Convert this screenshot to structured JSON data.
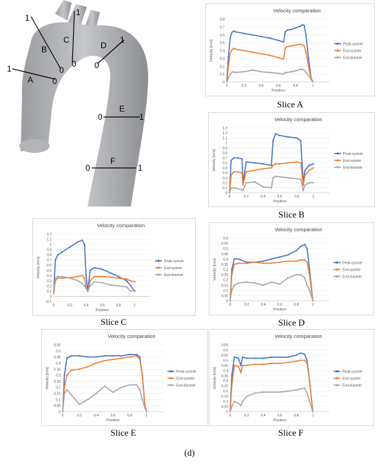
{
  "figure_label": "(d)",
  "series_colors": {
    "Peak-systole": "#4472c4",
    "End-systole": "#ed7d31",
    "End-diastole": "#a5a5a5"
  },
  "aorta": {
    "slice_letters": [
      "A",
      "B",
      "C",
      "D",
      "E",
      "F"
    ],
    "endpoint_labels": [
      "0",
      "1"
    ]
  },
  "chart_data": [
    {
      "type": "line",
      "caption": "Slice A",
      "title": "Velocity comparation",
      "xlabel": "Position",
      "ylabel": "Velocity [m/s]",
      "xlim": [
        0,
        1.2
      ],
      "ylim": [
        0,
        0.8
      ],
      "xticks": [
        0,
        0.2,
        0.4,
        0.6,
        0.8,
        1
      ],
      "yticks": [
        0,
        0.1,
        0.2,
        0.3,
        0.4,
        0.5,
        0.6,
        0.7,
        0.8
      ],
      "x": [
        0,
        0.02,
        0.04,
        0.06,
        0.08,
        0.1,
        0.2,
        0.3,
        0.4,
        0.5,
        0.6,
        0.66,
        0.68,
        0.7,
        0.75,
        0.8,
        0.85,
        0.88,
        0.9,
        0.92,
        0.95,
        0.98,
        1.0
      ],
      "series": [
        {
          "name": "Peak-systole",
          "values": [
            0.0,
            0.32,
            0.56,
            0.63,
            0.65,
            0.64,
            0.62,
            0.6,
            0.58,
            0.56,
            0.53,
            0.51,
            0.64,
            0.66,
            0.67,
            0.69,
            0.71,
            0.73,
            0.72,
            0.6,
            0.3,
            0.05,
            0.0
          ]
        },
        {
          "name": "End-systole",
          "values": [
            0.0,
            0.2,
            0.36,
            0.41,
            0.43,
            0.42,
            0.4,
            0.38,
            0.36,
            0.34,
            0.31,
            0.29,
            0.43,
            0.45,
            0.46,
            0.47,
            0.48,
            0.47,
            0.46,
            0.38,
            0.2,
            0.04,
            0.0
          ]
        },
        {
          "name": "End-diastole",
          "values": [
            0.0,
            0.05,
            0.1,
            0.12,
            0.13,
            0.12,
            0.13,
            0.15,
            0.13,
            0.12,
            0.11,
            0.1,
            0.12,
            0.12,
            0.13,
            0.14,
            0.16,
            0.16,
            0.15,
            0.12,
            0.08,
            0.03,
            0.0
          ]
        }
      ]
    },
    {
      "type": "line",
      "caption": "Slice B",
      "title": "Velocity comparation",
      "xlabel": "Position",
      "ylabel": "Velocity [m/s]",
      "xlim": [
        0,
        1.2
      ],
      "ylim": [
        0,
        1.3
      ],
      "xticks": [
        0,
        0.2,
        0.4,
        0.6,
        0.8,
        1
      ],
      "yticks": [
        0,
        0.1,
        0.2,
        0.3,
        0.4,
        0.5,
        0.6,
        0.7,
        0.8,
        0.9,
        1,
        1.1,
        1.2,
        1.3
      ],
      "x": [
        0,
        0.02,
        0.05,
        0.1,
        0.15,
        0.16,
        0.2,
        0.3,
        0.4,
        0.5,
        0.52,
        0.55,
        0.6,
        0.7,
        0.8,
        0.85,
        0.88,
        0.9,
        0.95,
        1.0
      ],
      "series": [
        {
          "name": "Peak-systole",
          "values": [
            0.0,
            0.65,
            0.7,
            0.7,
            0.68,
            0.2,
            0.62,
            0.6,
            0.58,
            0.55,
            1.05,
            1.18,
            1.15,
            1.12,
            1.1,
            1.05,
            0.2,
            0.45,
            0.55,
            0.58
          ]
        },
        {
          "name": "End-systole",
          "values": [
            0.0,
            0.35,
            0.42,
            0.42,
            0.4,
            0.15,
            0.42,
            0.45,
            0.48,
            0.5,
            0.55,
            0.58,
            0.58,
            0.6,
            0.62,
            0.6,
            0.15,
            0.35,
            0.45,
            0.5
          ]
        },
        {
          "name": "End-diastole",
          "values": [
            0.0,
            0.1,
            0.1,
            0.08,
            0.06,
            0.05,
            0.2,
            0.22,
            0.12,
            0.1,
            0.3,
            0.33,
            0.32,
            0.3,
            0.28,
            0.27,
            0.05,
            0.15,
            0.2,
            0.2
          ]
        }
      ]
    },
    {
      "type": "line",
      "caption": "Slice C",
      "title": "Velocity comparation",
      "xlabel": "Position",
      "ylabel": "Velocity [m/s]",
      "xlim": [
        0,
        1.2
      ],
      "ylim": [
        -0.1,
        1.2
      ],
      "xticks": [
        0,
        0.2,
        0.4,
        0.6,
        0.8,
        1
      ],
      "yticks": [
        -0.1,
        0,
        0.1,
        0.2,
        0.3,
        0.4,
        0.5,
        0.6,
        0.7,
        0.8,
        0.9,
        1,
        1.1,
        1.2
      ],
      "x": [
        0,
        0.02,
        0.05,
        0.1,
        0.2,
        0.3,
        0.35,
        0.38,
        0.4,
        0.42,
        0.45,
        0.5,
        0.6,
        0.7,
        0.8,
        0.9,
        0.95,
        1.0
      ],
      "series": [
        {
          "name": "Peak-systole",
          "values": [
            0.1,
            0.7,
            0.8,
            0.85,
            0.95,
            1.05,
            1.08,
            1.0,
            0.4,
            0.1,
            0.5,
            0.55,
            0.52,
            0.45,
            0.38,
            0.3,
            0.2,
            0.1
          ]
        },
        {
          "name": "End-systole",
          "values": [
            0.05,
            0.3,
            0.35,
            0.35,
            0.36,
            0.38,
            0.4,
            0.35,
            0.15,
            0.1,
            0.3,
            0.38,
            0.38,
            0.37,
            0.35,
            0.33,
            0.3,
            0.28
          ]
        },
        {
          "name": "End-diastole",
          "values": [
            0.1,
            0.35,
            0.38,
            0.38,
            0.35,
            0.3,
            0.25,
            0.2,
            0.15,
            0.1,
            0.2,
            0.28,
            0.26,
            0.22,
            0.2,
            0.18,
            0.1,
            0.12
          ]
        }
      ]
    },
    {
      "type": "line",
      "caption": "Slice D",
      "title": "Velocity comparation",
      "xlabel": "Position",
      "ylabel": "Velocity [m/s]",
      "xlim": [
        0,
        1.2
      ],
      "ylim": [
        0,
        0.6
      ],
      "xticks": [
        0,
        0.2,
        0.4,
        0.6,
        0.8,
        1
      ],
      "yticks": [
        0,
        0.05,
        0.1,
        0.15,
        0.2,
        0.25,
        0.3,
        0.35,
        0.4,
        0.45,
        0.5,
        0.55,
        0.6
      ],
      "x": [
        0,
        0.02,
        0.05,
        0.1,
        0.2,
        0.3,
        0.4,
        0.5,
        0.6,
        0.7,
        0.8,
        0.85,
        0.9,
        0.93,
        0.96,
        1.0
      ],
      "series": [
        {
          "name": "Peak-systole",
          "values": [
            0.0,
            0.3,
            0.4,
            0.4,
            0.37,
            0.37,
            0.38,
            0.4,
            0.42,
            0.44,
            0.48,
            0.52,
            0.54,
            0.5,
            0.3,
            0.0
          ]
        },
        {
          "name": "End-systole",
          "values": [
            0.0,
            0.25,
            0.35,
            0.36,
            0.36,
            0.37,
            0.36,
            0.36,
            0.37,
            0.38,
            0.38,
            0.39,
            0.39,
            0.37,
            0.25,
            0.0
          ]
        },
        {
          "name": "End-diastole",
          "values": [
            0.0,
            0.1,
            0.15,
            0.17,
            0.18,
            0.17,
            0.15,
            0.18,
            0.16,
            0.22,
            0.25,
            0.25,
            0.22,
            0.15,
            0.1,
            0.0
          ]
        }
      ]
    },
    {
      "type": "line",
      "caption": "Slice E",
      "title": "Velocity comparation",
      "xlabel": "Position",
      "ylabel": "Velocity [m/s]",
      "xlim": [
        0,
        1.2
      ],
      "ylim": [
        0,
        0.55
      ],
      "xticks": [
        0,
        0.2,
        0.4,
        0.6,
        0.8,
        1
      ],
      "yticks": [
        0,
        0.05,
        0.1,
        0.15,
        0.2,
        0.25,
        0.3,
        0.35,
        0.4,
        0.45,
        0.5,
        0.55
      ],
      "x": [
        0,
        0.02,
        0.05,
        0.1,
        0.2,
        0.3,
        0.4,
        0.5,
        0.6,
        0.7,
        0.8,
        0.88,
        0.92,
        0.95,
        0.98,
        1.0
      ],
      "series": [
        {
          "name": "Peak-systole",
          "values": [
            0.0,
            0.3,
            0.44,
            0.46,
            0.46,
            0.45,
            0.45,
            0.46,
            0.46,
            0.46,
            0.47,
            0.47,
            0.45,
            0.3,
            0.05,
            0.0
          ]
        },
        {
          "name": "End-systole",
          "values": [
            0.0,
            0.2,
            0.3,
            0.34,
            0.35,
            0.37,
            0.4,
            0.42,
            0.43,
            0.44,
            0.45,
            0.46,
            0.43,
            0.3,
            0.05,
            0.0
          ]
        },
        {
          "name": "End-diastole",
          "values": [
            0.0,
            0.15,
            0.18,
            0.14,
            0.06,
            0.1,
            0.15,
            0.21,
            0.16,
            0.2,
            0.22,
            0.22,
            0.18,
            0.1,
            0.03,
            0.0
          ]
        }
      ]
    },
    {
      "type": "line",
      "caption": "Slice F",
      "title": "Velocity comparation",
      "xlabel": "Position",
      "ylabel": "Velocity [m/s]",
      "xlim": [
        0,
        1.2
      ],
      "ylim": [
        0,
        0.65
      ],
      "xticks": [
        0,
        0.2,
        0.4,
        0.6,
        0.8,
        1
      ],
      "yticks": [
        0,
        0.05,
        0.1,
        0.15,
        0.2,
        0.25,
        0.3,
        0.35,
        0.4,
        0.45,
        0.5,
        0.55,
        0.6,
        0.65
      ],
      "x": [
        0,
        0.02,
        0.05,
        0.1,
        0.13,
        0.15,
        0.2,
        0.3,
        0.4,
        0.5,
        0.6,
        0.7,
        0.8,
        0.85,
        0.9,
        0.93,
        0.96,
        1.0
      ],
      "series": [
        {
          "name": "Peak-systole",
          "values": [
            0.0,
            0.35,
            0.53,
            0.52,
            0.45,
            0.53,
            0.52,
            0.52,
            0.52,
            0.53,
            0.53,
            0.53,
            0.55,
            0.57,
            0.56,
            0.5,
            0.3,
            0.0
          ]
        },
        {
          "name": "End-systole",
          "values": [
            0.0,
            0.25,
            0.45,
            0.44,
            0.38,
            0.45,
            0.45,
            0.46,
            0.46,
            0.47,
            0.47,
            0.48,
            0.49,
            0.5,
            0.5,
            0.47,
            0.3,
            0.0
          ]
        },
        {
          "name": "End-diastole",
          "values": [
            0.0,
            0.05,
            0.1,
            0.08,
            0.06,
            0.1,
            0.15,
            0.18,
            0.19,
            0.19,
            0.19,
            0.2,
            0.21,
            0.22,
            0.23,
            0.18,
            0.1,
            0.0
          ]
        }
      ]
    }
  ]
}
